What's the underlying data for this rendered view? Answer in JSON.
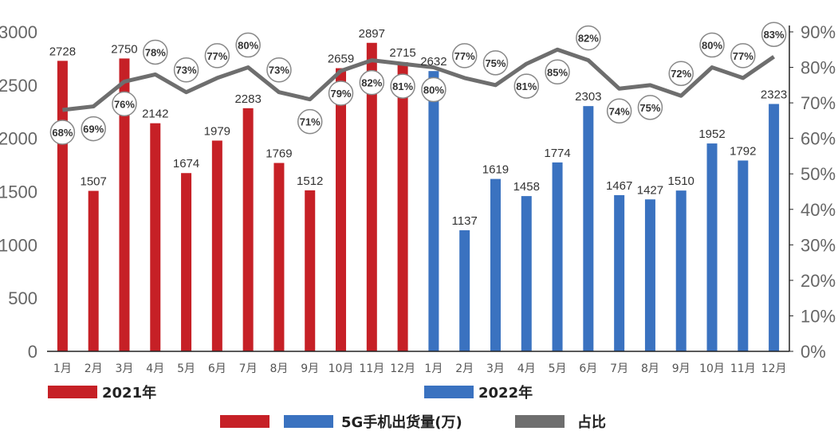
{
  "chart_data": {
    "type": "bar",
    "categories": [
      "1月",
      "2月",
      "3月",
      "4月",
      "5月",
      "6月",
      "7月",
      "8月",
      "9月",
      "10月",
      "11月",
      "12月",
      "1月",
      "2月",
      "3月",
      "4月",
      "5月",
      "6月",
      "7月",
      "8月",
      "9月",
      "10月",
      "11月",
      "12月"
    ],
    "series": [
      {
        "name": "5G手机出货量(万)",
        "type": "bar",
        "axis": "left",
        "values": [
          2728,
          1507,
          2750,
          2142,
          1674,
          1979,
          2283,
          1769,
          1512,
          2659,
          2897,
          2715,
          2632,
          1137,
          1619,
          1458,
          1774,
          2303,
          1467,
          1427,
          1510,
          1952,
          1792,
          2323
        ]
      },
      {
        "name": "占比",
        "type": "line",
        "axis": "right",
        "values": [
          68,
          69,
          76,
          78,
          73,
          77,
          80,
          73,
          71,
          79,
          82,
          81,
          80,
          77,
          75,
          81,
          85,
          82,
          74,
          75,
          72,
          80,
          77,
          83
        ],
        "labels": [
          "68%",
          "69%",
          "76%",
          "78%",
          "73%",
          "77%",
          "80%",
          "73%",
          "71%",
          "79%",
          "82%",
          "81%",
          "80%",
          "77%",
          "75%",
          "81%",
          "85%",
          "82%",
          "74%",
          "75%",
          "72%",
          "80%",
          "77%",
          "83%"
        ]
      }
    ],
    "year_groups": [
      {
        "name": "2021年",
        "start_index": 0,
        "end_index": 11,
        "color": "#c62026"
      },
      {
        "name": "2022年",
        "start_index": 12,
        "end_index": 23,
        "color": "#3a72c0"
      }
    ],
    "line_color": "#6e6e6e",
    "y_left": {
      "min": 0,
      "max": 3000,
      "ticks": [
        "0",
        "500",
        "1000",
        "1500",
        "2000",
        "2500",
        "3000"
      ]
    },
    "y_right": {
      "min": 0,
      "max": 90,
      "ticks": [
        "0%",
        "10%",
        "20%",
        "30%",
        "40%",
        "50%",
        "60%",
        "70%",
        "80%",
        "90%"
      ]
    },
    "legend": {
      "year_2021": "2021年",
      "year_2022": "2022年",
      "bars": "5G手机出货量(万)",
      "line": "占比"
    }
  }
}
